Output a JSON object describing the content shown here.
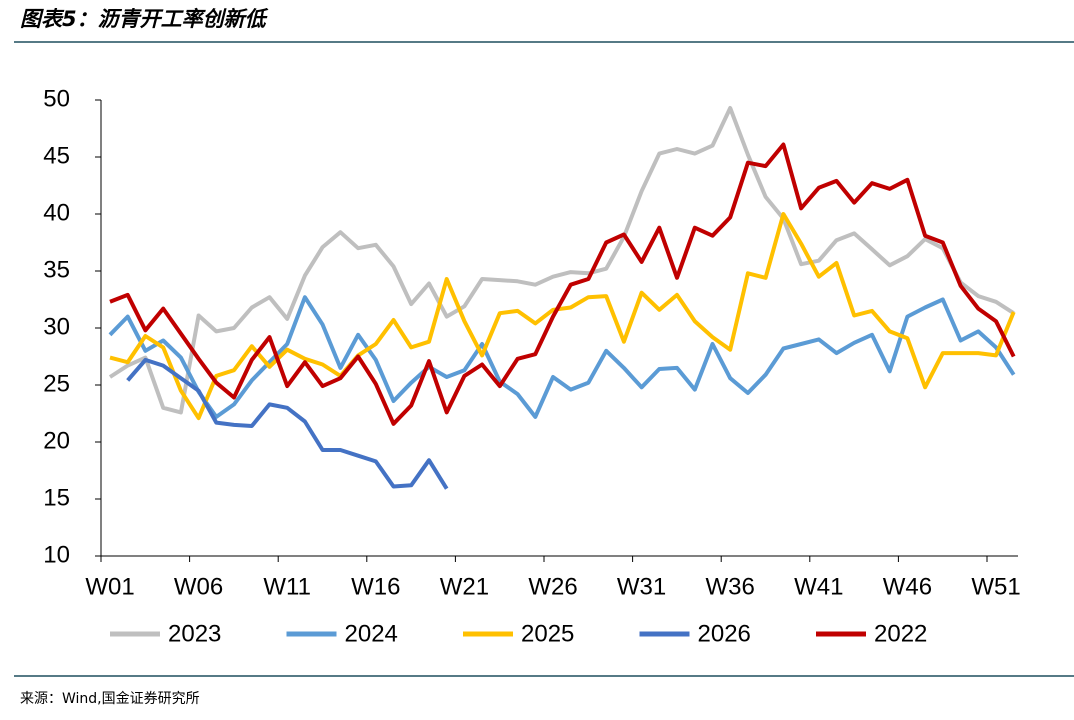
{
  "chart_data": {
    "type": "line",
    "title": "图表5：沥青开工率创新低",
    "source": "来源：Wind,国金证券研究所",
    "categories": [
      "W01",
      null,
      null,
      null,
      null,
      "W06",
      null,
      null,
      null,
      null,
      "W11",
      null,
      null,
      null,
      null,
      "W16",
      null,
      null,
      null,
      null,
      "W21",
      null,
      null,
      null,
      null,
      "W26",
      null,
      null,
      null,
      null,
      "W31",
      null,
      null,
      null,
      null,
      "W36",
      null,
      null,
      null,
      null,
      "W41",
      null,
      null,
      null,
      null,
      "W46",
      null,
      null,
      null,
      null,
      "W51",
      null
    ],
    "ylim": [
      10,
      50
    ],
    "yticks": [
      10,
      15,
      20,
      25,
      30,
      35,
      40,
      45,
      50
    ],
    "legend": "bottom",
    "series": [
      {
        "name": "2023",
        "color": "#bfbfbf",
        "values": [
          25.7,
          26.7,
          27.4,
          23.0,
          22.6,
          31.1,
          29.7,
          30.0,
          31.8,
          32.7,
          30.8,
          34.6,
          37.1,
          38.4,
          37.0,
          37.3,
          35.4,
          32.1,
          33.9,
          31.0,
          31.9,
          34.3,
          34.2,
          34.1,
          33.8,
          34.5,
          34.9,
          34.8,
          35.2,
          38.0,
          42.0,
          45.3,
          45.7,
          45.3,
          46.0,
          49.3,
          45.2,
          41.5,
          39.6,
          35.6,
          35.9,
          37.7,
          38.3,
          36.9,
          35.5,
          36.3,
          37.8,
          37.0,
          34.0,
          32.8,
          32.3,
          31.3
        ]
      },
      {
        "name": "2024",
        "color": "#5b9bd5",
        "values": [
          29.4,
          31.0,
          28.0,
          28.9,
          27.4,
          24.4,
          22.2,
          23.3,
          25.4,
          27.0,
          28.6,
          32.7,
          30.3,
          26.5,
          29.4,
          27.2,
          23.6,
          25.2,
          26.6,
          25.7,
          26.3,
          28.6,
          25.3,
          24.2,
          22.2,
          25.7,
          24.6,
          25.2,
          28.0,
          26.5,
          24.8,
          26.4,
          26.5,
          24.6,
          28.6,
          25.6,
          24.3,
          25.9,
          28.2,
          28.6,
          29.0,
          27.8,
          28.7,
          29.4,
          26.2,
          31.0,
          31.8,
          32.5,
          28.9,
          29.7,
          28.3,
          25.9
        ]
      },
      {
        "name": "2025",
        "color": "#ffc000",
        "values": [
          27.4,
          27.0,
          29.3,
          28.3,
          24.5,
          22.1,
          25.8,
          26.3,
          28.4,
          26.6,
          28.1,
          27.3,
          26.8,
          25.8,
          27.6,
          28.6,
          30.7,
          28.3,
          28.8,
          34.3,
          30.6,
          27.6,
          31.3,
          31.5,
          30.4,
          31.6,
          31.8,
          32.7,
          32.8,
          28.8,
          33.1,
          31.6,
          32.9,
          30.6,
          29.2,
          28.1,
          34.8,
          34.4,
          40.0,
          37.4,
          34.5,
          35.7,
          31.1,
          31.5,
          29.7,
          29.1,
          24.8,
          27.8,
          27.8,
          27.8,
          27.6,
          31.4
        ]
      },
      {
        "name": "2026",
        "color": "#4472c4",
        "values": [
          null,
          25.4,
          27.2,
          26.7,
          25.6,
          24.5,
          21.7,
          21.5,
          21.4,
          23.3,
          23.0,
          21.8,
          19.3,
          19.3,
          18.8,
          18.3,
          16.1,
          16.2,
          18.4,
          15.9,
          null,
          null,
          null,
          null,
          null,
          null,
          null,
          null,
          null,
          null,
          null,
          null,
          null,
          null,
          null,
          null,
          null,
          null,
          null,
          null,
          null,
          null,
          null,
          null,
          null,
          null,
          null,
          null,
          null,
          null,
          null,
          null
        ]
      },
      {
        "name": "2022",
        "color": "#c00000",
        "values": [
          32.3,
          32.9,
          29.8,
          31.7,
          29.5,
          27.3,
          25.2,
          23.9,
          27.2,
          29.2,
          24.9,
          27.0,
          24.9,
          25.6,
          27.5,
          25.1,
          21.6,
          23.2,
          27.1,
          22.6,
          25.8,
          26.8,
          24.9,
          27.3,
          27.7,
          31.0,
          33.8,
          34.3,
          37.5,
          38.2,
          35.8,
          38.8,
          34.4,
          38.8,
          38.1,
          39.7,
          44.5,
          44.2,
          46.1,
          40.5,
          42.3,
          42.9,
          41.0,
          42.7,
          42.2,
          43.0,
          38.1,
          37.5,
          33.7,
          31.7,
          30.6,
          27.5
        ]
      }
    ]
  }
}
